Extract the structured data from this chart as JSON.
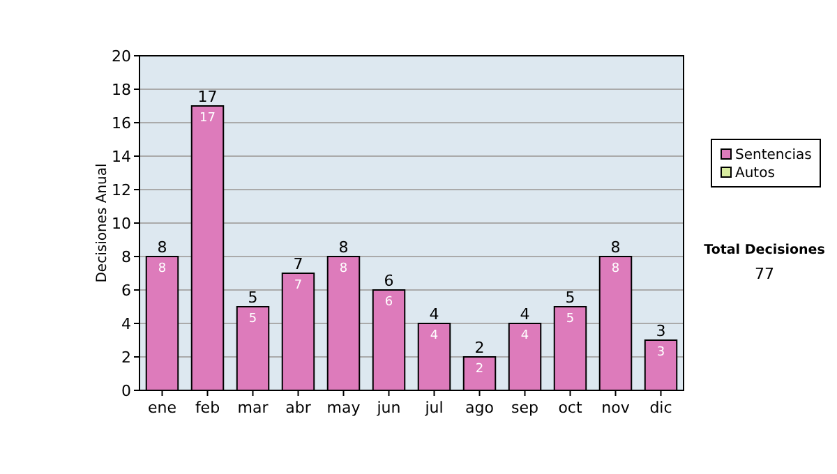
{
  "chart_data": {
    "type": "bar",
    "stacked": true,
    "ylabel": "Decisiones Anual",
    "categories": [
      "ene",
      "feb",
      "mar",
      "abr",
      "may",
      "jun",
      "jul",
      "ago",
      "sep",
      "oct",
      "nov",
      "dic"
    ],
    "series": [
      {
        "name": "Sentencias",
        "color": "#dd7bbb",
        "values": [
          8,
          17,
          5,
          7,
          8,
          6,
          4,
          2,
          4,
          5,
          8,
          3
        ],
        "value_labels": [
          "8",
          "17",
          "5",
          "7",
          "8",
          "6",
          "4",
          "2",
          "4",
          "5",
          "8",
          "3"
        ]
      },
      {
        "name": "Autos",
        "color": "#d8eca0",
        "values": [
          0,
          0,
          0,
          0,
          0,
          0,
          0,
          0,
          0,
          0,
          0,
          0
        ]
      }
    ],
    "totals": [
      "8",
      "17",
      "5",
      "7",
      "8",
      "6",
      "4",
      "2",
      "4",
      "5",
      "8",
      "3"
    ],
    "ylim": [
      0,
      20
    ],
    "yticks": [
      0,
      2,
      4,
      6,
      8,
      10,
      12,
      14,
      16,
      18,
      20
    ],
    "grid": "y",
    "legend": "right",
    "annotations": [
      "Total Decisiones",
      "77"
    ]
  }
}
